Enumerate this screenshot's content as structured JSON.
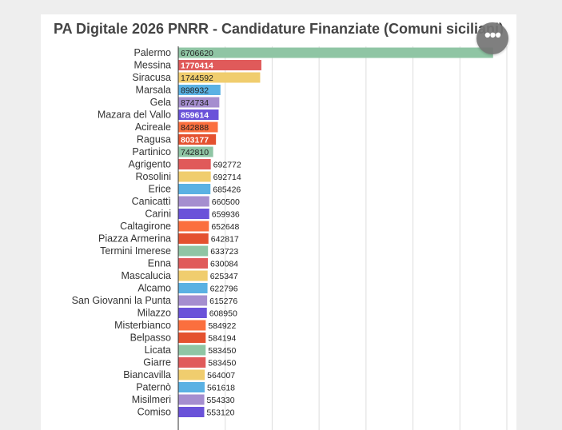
{
  "menu": {
    "icon": "more-horizontal-icon",
    "glyph": "•••"
  },
  "colors": {
    "palette": [
      "#8fc5a4",
      "#e05a5a",
      "#f0cd6e",
      "#5ab1e3",
      "#a58ecf",
      "#6a52d9",
      "#fb6f3e",
      "#e4512f"
    ],
    "grid": "#dddddd",
    "label": "#333333"
  },
  "chart_data": {
    "type": "bar",
    "orientation": "horizontal",
    "title": "PA Digitale 2026 PNRR - Candidature Finanziate (Comuni siciliani)",
    "xlabel": "",
    "ylabel": "",
    "xlim": [
      0,
      7000000
    ],
    "grid": true,
    "legend": "none",
    "categories": [
      "Palermo",
      "Messina",
      "Siracusa",
      "Marsala",
      "Gela",
      "Mazara del Vallo",
      "Acireale",
      "Ragusa",
      "Partinico",
      "Agrigento",
      "Rosolini",
      "Erice",
      "Canicattì",
      "Carini",
      "Caltagirone",
      "Piazza Armerina",
      "Termini Imerese",
      "Enna",
      "Mascalucia",
      "Alcamo",
      "San Giovanni la Punta",
      "Milazzo",
      "Misterbianco",
      "Belpasso",
      "Licata",
      "Giarre",
      "Biancavilla",
      "Paternò",
      "Misilmeri",
      "Comiso"
    ],
    "values": [
      6706620,
      1770414,
      1744592,
      898932,
      874734,
      859614,
      842888,
      803177,
      742810,
      692772,
      692714,
      685426,
      660500,
      659936,
      652648,
      642817,
      633723,
      630084,
      625347,
      622796,
      615276,
      608950,
      584922,
      584194,
      583450,
      583450,
      564007,
      561618,
      554330,
      553120
    ],
    "value_labels": [
      "6706620",
      "1770414",
      "1744592",
      "898932",
      "874734",
      "859614",
      "842888",
      "803177",
      "742810",
      "692772",
      "692714",
      "685426",
      "660500",
      "659936",
      "652648",
      "642817",
      "633723",
      "630084",
      "625347",
      "622796",
      "615276",
      "608950",
      "584922",
      "584194",
      "583450",
      "583450",
      "564007",
      "561618",
      "554330",
      "553120"
    ]
  }
}
